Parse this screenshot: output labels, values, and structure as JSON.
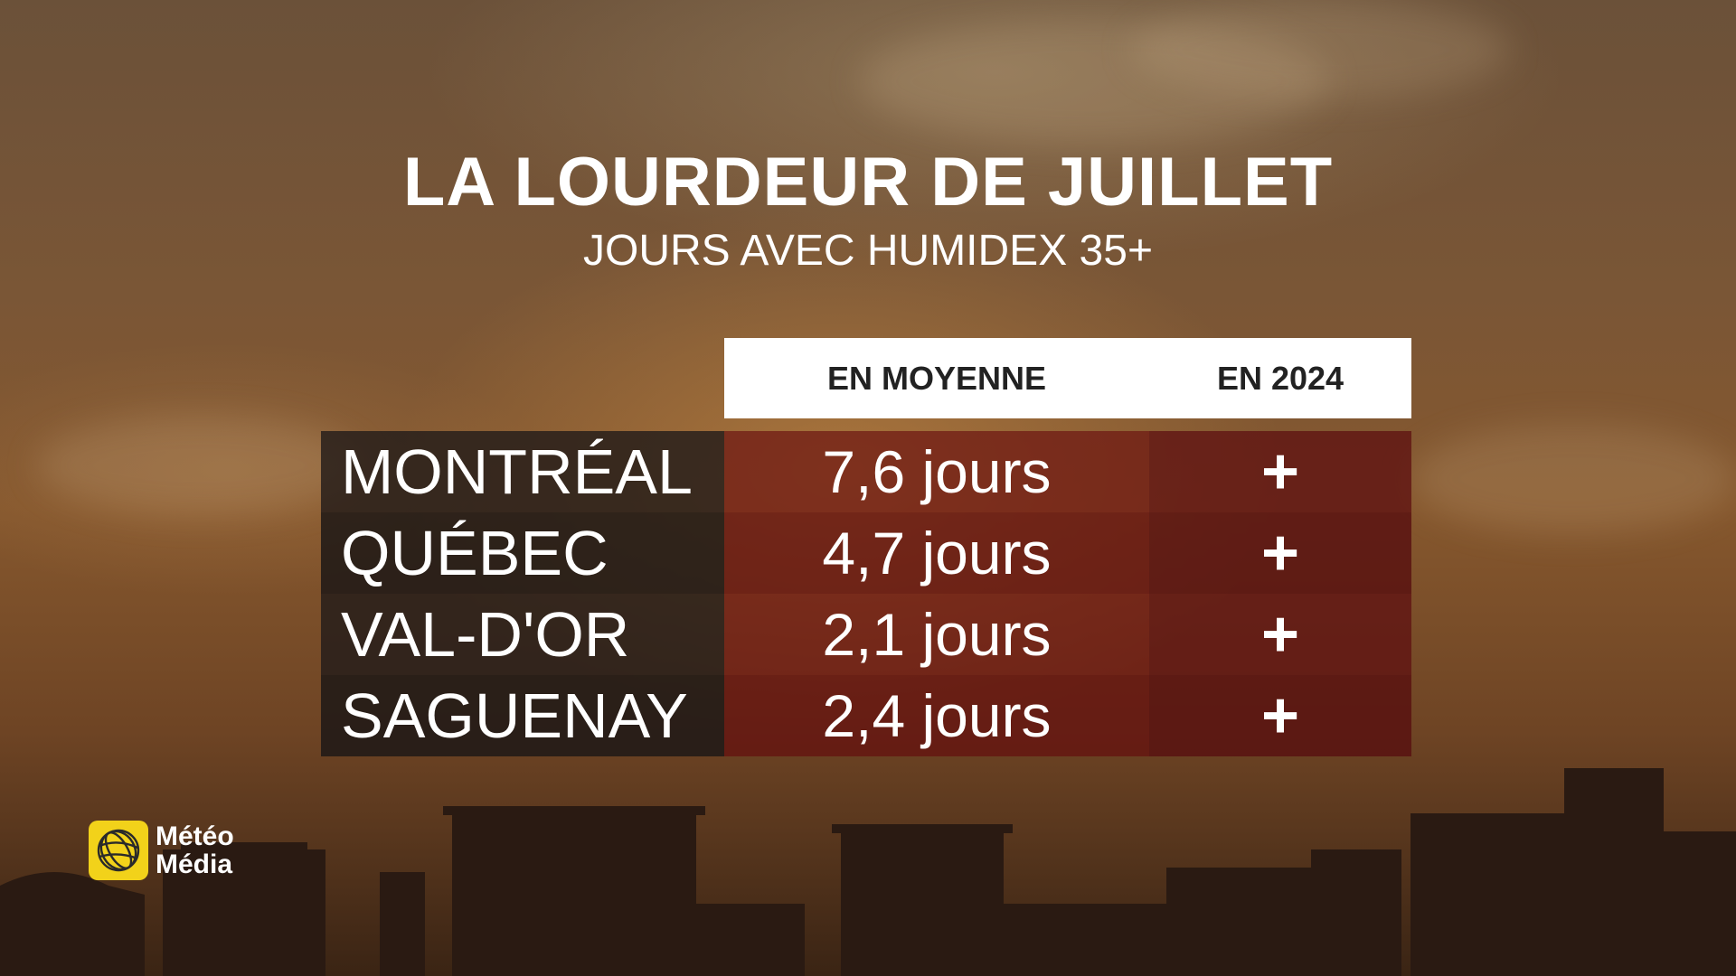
{
  "title": "LA LOURDEUR DE JUILLET",
  "subtitle": "JOURS AVEC HUMIDEX 35+",
  "headers": {
    "average": "EN MOYENNE",
    "year": "EN 2024"
  },
  "rows": [
    {
      "city": "MONTRÉAL",
      "average": "7,6 jours",
      "year": "+"
    },
    {
      "city": "QUÉBEC",
      "average": "4,7 jours",
      "year": "+"
    },
    {
      "city": "VAL-D'OR",
      "average": "2,1 jours",
      "year": "+"
    },
    {
      "city": "SAGUENAY",
      "average": "2,4 jours",
      "year": "+"
    }
  ],
  "logo": {
    "line1": "Météo",
    "line2": "Média",
    "icon": "meteomedia-globe-icon",
    "color": "#f2d21a"
  }
}
